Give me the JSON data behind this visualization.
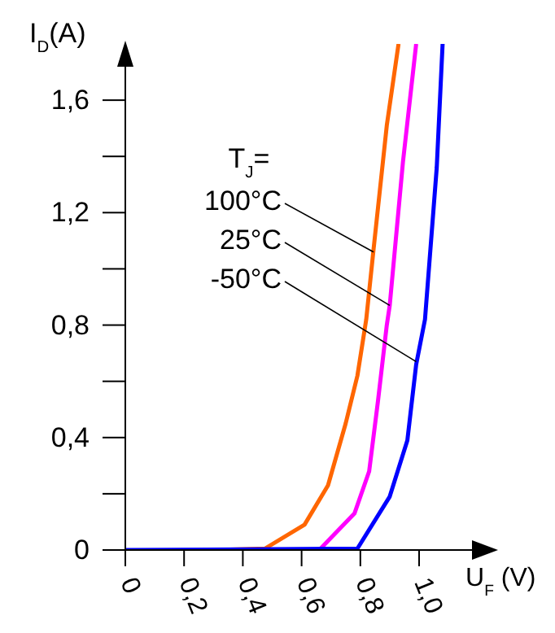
{
  "chart_data": {
    "type": "line",
    "xlabel": "U$_{F}$ (V)",
    "ylabel": "I$_{D}$(A)",
    "legend_title": "T$_{J}$=",
    "xlim": [
      0,
      1.18
    ],
    "ylim": [
      0,
      1.8
    ],
    "xticks": [
      {
        "value": 0,
        "label": "0"
      },
      {
        "value": 0.2,
        "label": "0,2"
      },
      {
        "value": 0.4,
        "label": "0,4"
      },
      {
        "value": 0.6,
        "label": "0,6"
      },
      {
        "value": 0.8,
        "label": "0,8"
      },
      {
        "value": 1.0,
        "label": "1,0"
      }
    ],
    "yticks": [
      {
        "value": 0,
        "label": "0"
      },
      {
        "value": 0.2,
        "label": null
      },
      {
        "value": 0.4,
        "label": "0,4"
      },
      {
        "value": 0.6,
        "label": null
      },
      {
        "value": 0.8,
        "label": "0,8"
      },
      {
        "value": 1.0,
        "label": null
      },
      {
        "value": 1.2,
        "label": "1,2"
      },
      {
        "value": 1.4,
        "label": null
      },
      {
        "value": 1.6,
        "label": "1,6"
      }
    ],
    "grid": false,
    "legend": false,
    "marker": "none",
    "line_style": "solid",
    "series": [
      {
        "color": "#ff6600",
        "x": [
          0.31,
          0.475,
          0.61,
          0.69,
          0.75,
          0.79,
          0.82,
          0.845,
          0.89,
          0.93
        ],
        "values": [
          0,
          0.005,
          0.09,
          0.23,
          0.45,
          0.62,
          0.82,
          1.07,
          1.51,
          1.8
        ]
      },
      {
        "color": "#ff00ff",
        "x": [
          0.31,
          0.66,
          0.78,
          0.83,
          0.86,
          0.89,
          0.9,
          0.945,
          0.99
        ],
        "values": [
          0,
          0,
          0.13,
          0.28,
          0.53,
          0.8,
          0.87,
          1.38,
          1.8
        ]
      },
      {
        "color": "#0000ff",
        "x": [
          0,
          0.79,
          0.9,
          0.96,
          0.99,
          1.02,
          1.06,
          1.08
        ],
        "values": [
          0,
          0.005,
          0.19,
          0.39,
          0.66,
          0.82,
          1.36,
          1.8
        ]
      }
    ],
    "annotations": [
      {
        "text": "100°C",
        "x": 0.845,
        "y": 1.06
      },
      {
        "text": "25°C",
        "x": 0.9,
        "y": 0.87
      },
      {
        "text": "-50°C",
        "x": 0.99,
        "y": 0.67
      }
    ]
  }
}
